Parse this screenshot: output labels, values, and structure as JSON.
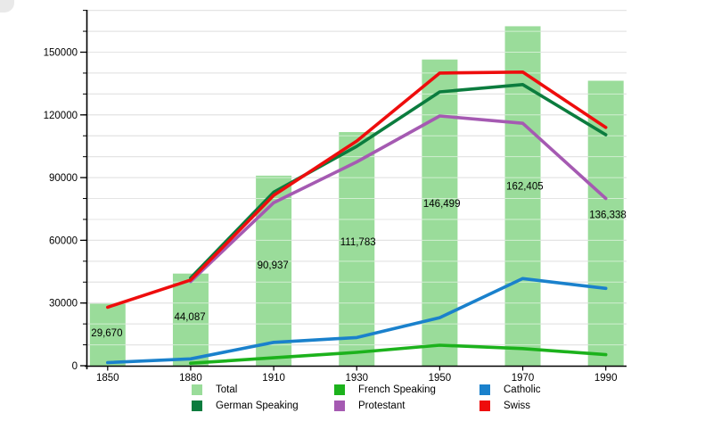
{
  "chart_data": {
    "type": "bar+line",
    "title": "",
    "categories": [
      "1850",
      "1880",
      "1910",
      "1930",
      "1950",
      "1970",
      "1990"
    ],
    "bars": {
      "name": "Total",
      "color": "#9ADC9A",
      "values": [
        29670,
        44087,
        90937,
        111783,
        146499,
        162405,
        136338
      ],
      "labels": [
        "29,670",
        "44,087",
        "90,937",
        "111,783",
        "146,499",
        "162,405",
        "136,338"
      ]
    },
    "series": [
      {
        "name": "Protestant",
        "color": "#A55AB2",
        "start_index": 1,
        "values": [
          40300,
          78000,
          97500,
          119500,
          116000,
          80000
        ]
      },
      {
        "name": "German Speaking",
        "color": "#0B7C3E",
        "start_index": 1,
        "values": [
          42000,
          83000,
          105000,
          131000,
          134500,
          110500
        ]
      },
      {
        "name": "Swiss",
        "color": "#EE0D0D",
        "start_index": 0,
        "values": [
          28000,
          41000,
          81500,
          107500,
          140000,
          140500,
          114000
        ]
      },
      {
        "name": "Catholic",
        "color": "#1A81CC",
        "start_index": 0,
        "values": [
          1500,
          3300,
          11200,
          13500,
          23000,
          41700,
          37000
        ]
      },
      {
        "name": "French Speaking",
        "color": "#1CB21C",
        "start_index": 1,
        "values": [
          1200,
          3800,
          6400,
          9800,
          8200,
          5300
        ]
      }
    ],
    "y_ticks": [
      {
        "v": 0,
        "label": "0"
      },
      {
        "v": 30000,
        "label": "30000"
      },
      {
        "v": 60000,
        "label": "60000"
      },
      {
        "v": 90000,
        "label": "90000"
      },
      {
        "v": 120000,
        "label": "120000"
      },
      {
        "v": 150000,
        "label": "150000"
      }
    ],
    "y_minor_step": 10000,
    "ylim": [
      0,
      170000
    ],
    "grid": true,
    "legend_position": "bottom",
    "xlabel": "",
    "ylabel": ""
  },
  "legend": {
    "items": [
      {
        "label": "Total",
        "color": "#9ADC9A"
      },
      {
        "label": "German Speaking",
        "color": "#0B7C3E"
      },
      {
        "label": "French Speaking",
        "color": "#1CB21C"
      },
      {
        "label": "Protestant",
        "color": "#A55AB2"
      },
      {
        "label": "Catholic",
        "color": "#1A81CC"
      },
      {
        "label": "Swiss",
        "color": "#EE0D0D"
      }
    ]
  }
}
